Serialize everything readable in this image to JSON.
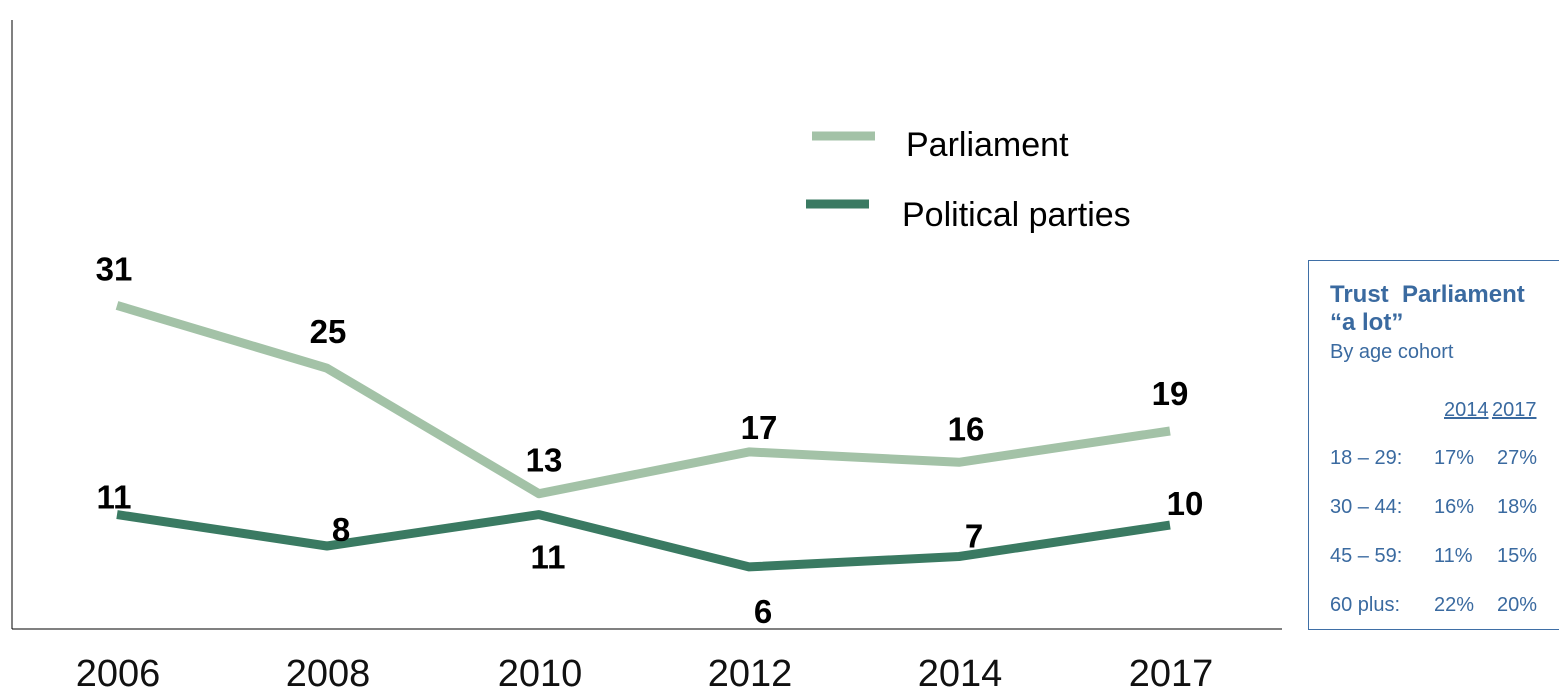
{
  "chart_data": {
    "type": "line",
    "categories": [
      "2006",
      "2008",
      "2010",
      "2012",
      "2014",
      "2017"
    ],
    "series": [
      {
        "name": "Parliament",
        "values": [
          31,
          25,
          13,
          17,
          16,
          19
        ],
        "color": "#a3c2a7"
      },
      {
        "name": "Political parties",
        "values": [
          11,
          8,
          11,
          6,
          7,
          10
        ],
        "color": "#3a7a62"
      }
    ],
    "legend_position": "top-right",
    "grid": false,
    "show_data_labels": true
  },
  "panel": {
    "title_line1": "Trust  Parliament",
    "title_line2": "“a lot”",
    "subtitle": "By age cohort",
    "headers": [
      "2014",
      "2017"
    ],
    "rows": [
      {
        "label": "18 – 29:",
        "v2014": "17%",
        "v2017": "27%"
      },
      {
        "label": "30 – 44:",
        "v2014": "16%",
        "v2017": "18%"
      },
      {
        "label": "45 – 59:",
        "v2014": "11%",
        "v2017": "15%"
      },
      {
        "label": "60 plus:",
        "v2014": "22%",
        "v2017": "20%"
      }
    ]
  },
  "colors": {
    "panel_text": "#3a6aa0",
    "panel_border": "#3f6fa6"
  }
}
